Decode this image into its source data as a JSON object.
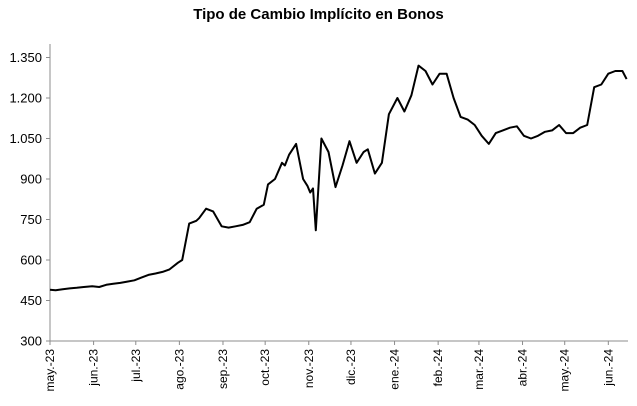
{
  "chart_data": {
    "type": "line",
    "title": "Tipo de Cambio Implícito en Bonos",
    "xlabel": "",
    "ylabel": "",
    "ylim": [
      300,
      1400
    ],
    "yticks": [
      "300",
      "450",
      "600",
      "750",
      "900",
      "1.050",
      "1.200",
      "1.350"
    ],
    "ytick_values": [
      300,
      450,
      600,
      750,
      900,
      1050,
      1200,
      1350
    ],
    "xticks": [
      "may.-23",
      "jun.-23",
      "jul.-23",
      "ago.-23",
      "sep.-23",
      "oct.-23",
      "nov.-23",
      "dic.-23",
      "ene.-24",
      "feb.-24",
      "mar.-24",
      "abr.-24",
      "may.-24",
      "jun.-24"
    ],
    "grid": false,
    "legend": "none",
    "line_color": "#000000",
    "series": [
      {
        "x": [
          "2023-05-01",
          "2023-05-05",
          "2023-05-10",
          "2023-05-15",
          "2023-05-20",
          "2023-05-25",
          "2023-05-31",
          "2023-06-05",
          "2023-06-10",
          "2023-06-15",
          "2023-06-20",
          "2023-06-25",
          "2023-06-30",
          "2023-07-05",
          "2023-07-10",
          "2023-07-15",
          "2023-07-20",
          "2023-07-25",
          "2023-07-31",
          "2023-08-03",
          "2023-08-08",
          "2023-08-13",
          "2023-08-15",
          "2023-08-20",
          "2023-08-25",
          "2023-08-31",
          "2023-09-05",
          "2023-09-10",
          "2023-09-15",
          "2023-09-20",
          "2023-09-25",
          "2023-09-30",
          "2023-10-03",
          "2023-10-08",
          "2023-10-13",
          "2023-10-15",
          "2023-10-18",
          "2023-10-23",
          "2023-10-28",
          "2023-10-31",
          "2023-11-02",
          "2023-11-04",
          "2023-11-06",
          "2023-11-10",
          "2023-11-15",
          "2023-11-20",
          "2023-11-25",
          "2023-11-30",
          "2023-12-05",
          "2023-12-10",
          "2023-12-13",
          "2023-12-18",
          "2023-12-23",
          "2023-12-28",
          "2024-01-03",
          "2024-01-08",
          "2024-01-13",
          "2024-01-18",
          "2024-01-23",
          "2024-01-28",
          "2024-02-02",
          "2024-02-07",
          "2024-02-12",
          "2024-02-17",
          "2024-02-22",
          "2024-02-27",
          "2024-03-03",
          "2024-03-08",
          "2024-03-13",
          "2024-03-18",
          "2024-03-23",
          "2024-03-28",
          "2024-04-02",
          "2024-04-07",
          "2024-04-12",
          "2024-04-17",
          "2024-04-22",
          "2024-04-27",
          "2024-05-02",
          "2024-05-07",
          "2024-05-12",
          "2024-05-17",
          "2024-05-22",
          "2024-05-27",
          "2024-06-01",
          "2024-06-06",
          "2024-06-11",
          "2024-06-14"
        ],
        "values": [
          490,
          488,
          492,
          495,
          497,
          500,
          503,
          500,
          508,
          512,
          515,
          520,
          525,
          535,
          545,
          550,
          556,
          565,
          590,
          600,
          735,
          745,
          755,
          790,
          780,
          725,
          720,
          725,
          730,
          740,
          790,
          805,
          880,
          900,
          960,
          950,
          990,
          1030,
          900,
          875,
          850,
          865,
          710,
          1050,
          1000,
          870,
          950,
          1040,
          960,
          1000,
          1010,
          920,
          960,
          1140,
          1200,
          1150,
          1210,
          1320,
          1300,
          1250,
          1290,
          1290,
          1200,
          1130,
          1120,
          1100,
          1060,
          1030,
          1070,
          1080,
          1090,
          1095,
          1060,
          1050,
          1060,
          1075,
          1080,
          1100,
          1070,
          1070,
          1090,
          1100,
          1240,
          1250,
          1290,
          1300,
          1300,
          1270
        ]
      }
    ]
  }
}
